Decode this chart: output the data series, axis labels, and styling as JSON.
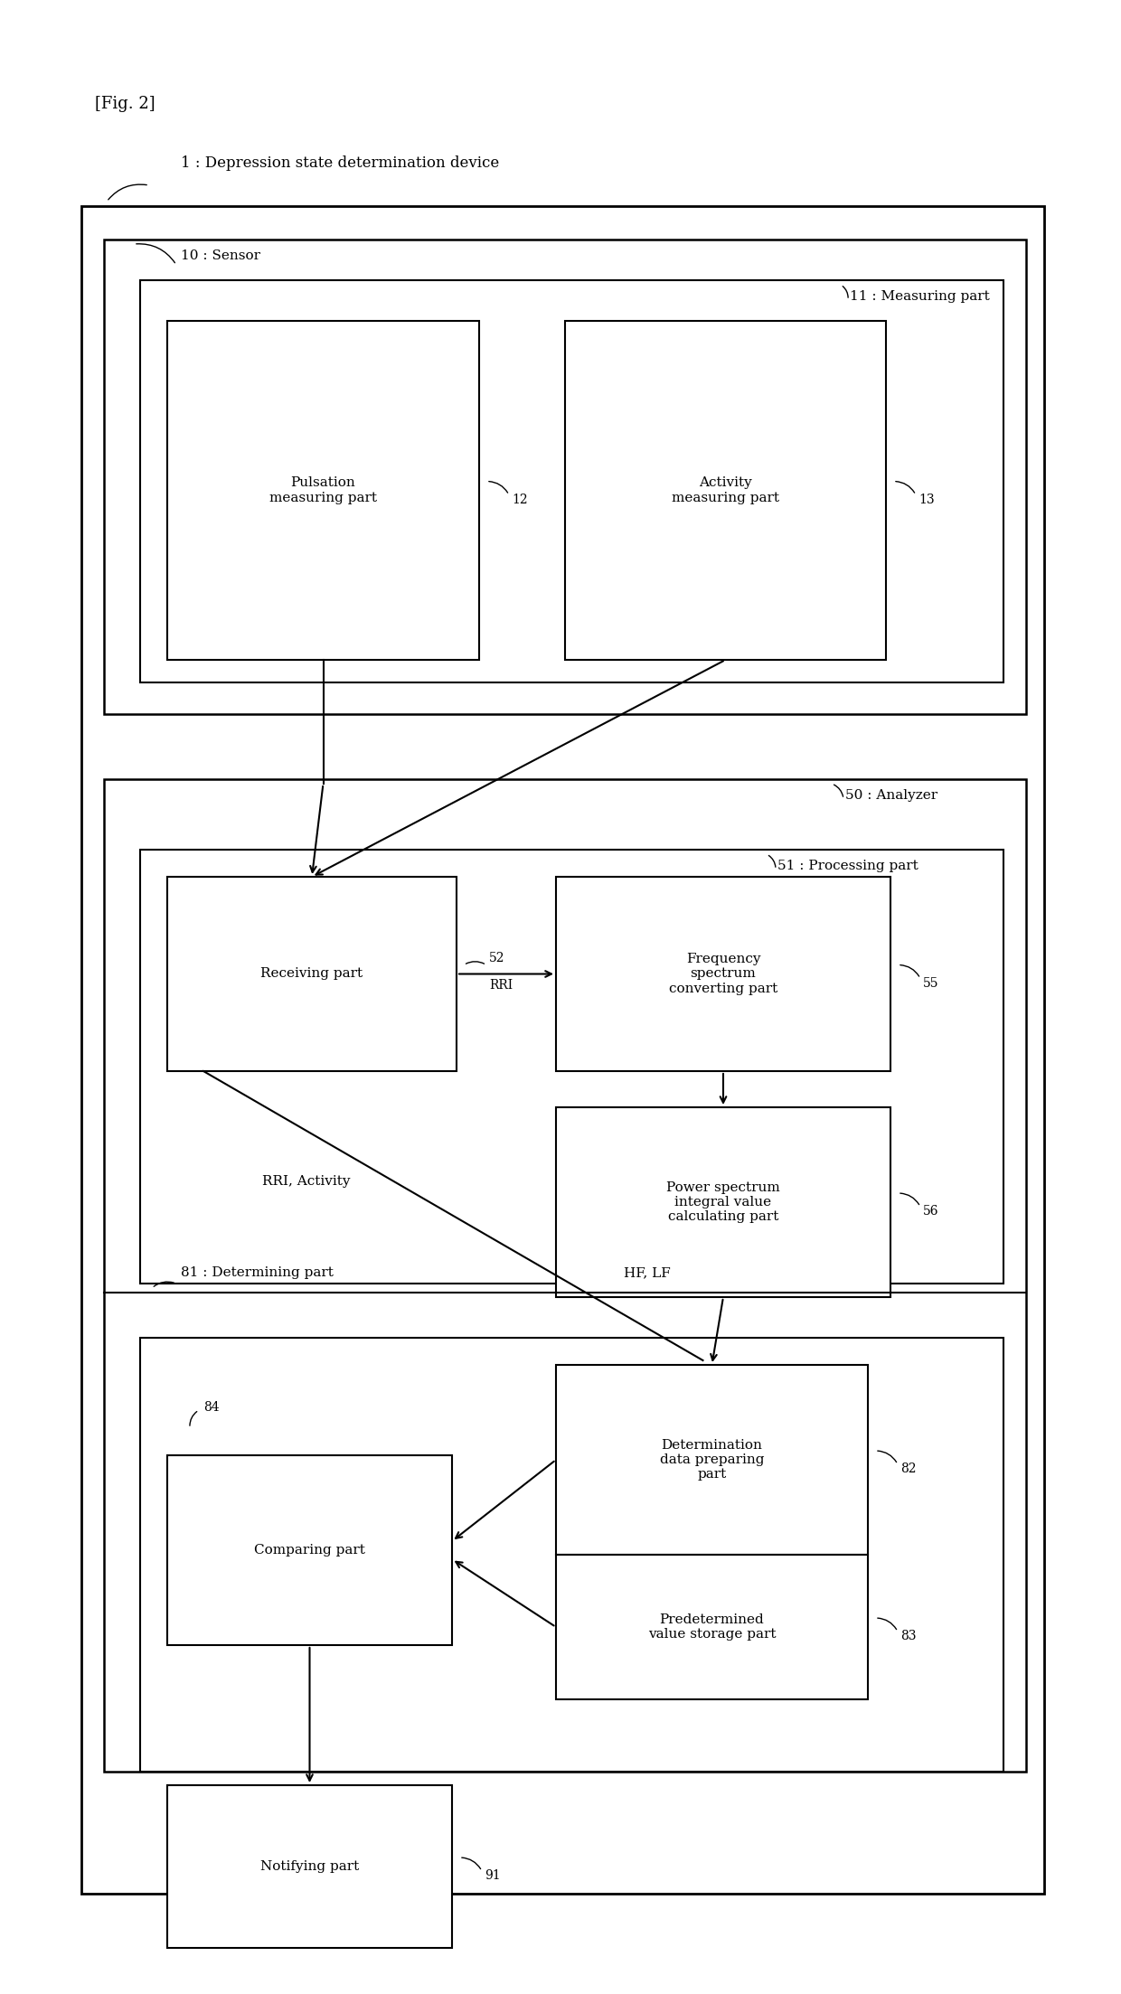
{
  "fig_label": "[Fig. 2]",
  "device_label": "1 : Depression state determination device",
  "sensor_label": "10 : Sensor",
  "measuring_label": "11 : Measuring part",
  "analyzer_label": "50 : Analyzer",
  "processing_label": "51 : Processing part",
  "determining_label": "81 : Determining part",
  "rri_label": "RRI",
  "rri_activity_label": "RRI, Activity",
  "hf_lf_label": "HF, LF",
  "boxes": {
    "pulsation": {
      "text": "Pulsation\nmeasuring part",
      "num": "12"
    },
    "activity": {
      "text": "Activity\nmeasuring part",
      "num": "13"
    },
    "receiving": {
      "text": "Receiving part",
      "num": "52"
    },
    "frequency": {
      "text": "Frequency\nspectrum\nconverting part",
      "num": "55"
    },
    "power": {
      "text": "Power spectrum\nintegral value\ncalculating part",
      "num": "56"
    },
    "determination": {
      "text": "Determination\ndata preparing\npart",
      "num": "82"
    },
    "comparing": {
      "text": "Comparing part",
      "num": "84"
    },
    "predetermined": {
      "text": "Predetermined\nvalue storage part",
      "num": "83"
    },
    "notifying": {
      "text": "Notifying part",
      "num": "91"
    }
  },
  "bg_color": "#ffffff",
  "box_edge": "#000000",
  "text_color": "#000000"
}
